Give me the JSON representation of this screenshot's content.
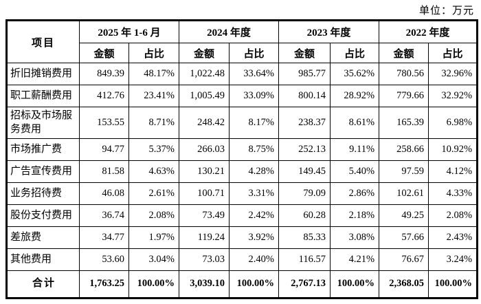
{
  "page": {
    "unit_label": "单位：万元"
  },
  "colors": {
    "border": "#000000",
    "text": "#000000",
    "background": "#ffffff"
  },
  "table": {
    "corner_header": "项目",
    "period_headers": [
      "2025 年 1-6 月",
      "2024 年度",
      "2023 年度",
      "2022 年度"
    ],
    "sub_headers": [
      "金额",
      "占比"
    ],
    "rows": [
      {
        "label": "折旧摊销费用",
        "values": [
          "849.39",
          "48.17%",
          "1,022.48",
          "33.64%",
          "985.77",
          "35.62%",
          "780.56",
          "32.96%"
        ]
      },
      {
        "label": "职工薪酬费用",
        "values": [
          "412.76",
          "23.41%",
          "1,005.49",
          "33.09%",
          "800.14",
          "28.92%",
          "779.66",
          "32.92%"
        ]
      },
      {
        "label": "招标及市场服务费用",
        "values": [
          "153.55",
          "8.71%",
          "248.42",
          "8.17%",
          "238.37",
          "8.61%",
          "165.39",
          "6.98%"
        ]
      },
      {
        "label": "市场推广费",
        "values": [
          "94.77",
          "5.37%",
          "266.03",
          "8.75%",
          "252.13",
          "9.11%",
          "258.66",
          "10.92%"
        ]
      },
      {
        "label": "广告宣传费用",
        "values": [
          "81.58",
          "4.63%",
          "130.21",
          "4.28%",
          "149.45",
          "5.40%",
          "97.59",
          "4.12%"
        ]
      },
      {
        "label": "业务招待费",
        "values": [
          "46.08",
          "2.61%",
          "100.71",
          "3.31%",
          "79.09",
          "2.86%",
          "102.61",
          "4.33%"
        ]
      },
      {
        "label": "股份支付费用",
        "values": [
          "36.74",
          "2.08%",
          "73.49",
          "2.42%",
          "60.28",
          "2.18%",
          "49.25",
          "2.08%"
        ]
      },
      {
        "label": "差旅费",
        "values": [
          "34.77",
          "1.97%",
          "119.24",
          "3.92%",
          "85.33",
          "3.08%",
          "57.66",
          "2.43%"
        ]
      },
      {
        "label": "其他费用",
        "values": [
          "53.60",
          "3.04%",
          "73.03",
          "2.40%",
          "116.57",
          "4.21%",
          "76.67",
          "3.24%"
        ]
      }
    ],
    "total_row": {
      "label": "合计",
      "values": [
        "1,763.25",
        "100.00%",
        "3,039.10",
        "100.00%",
        "2,767.13",
        "100.00%",
        "2,368.05",
        "100.00%"
      ]
    }
  }
}
